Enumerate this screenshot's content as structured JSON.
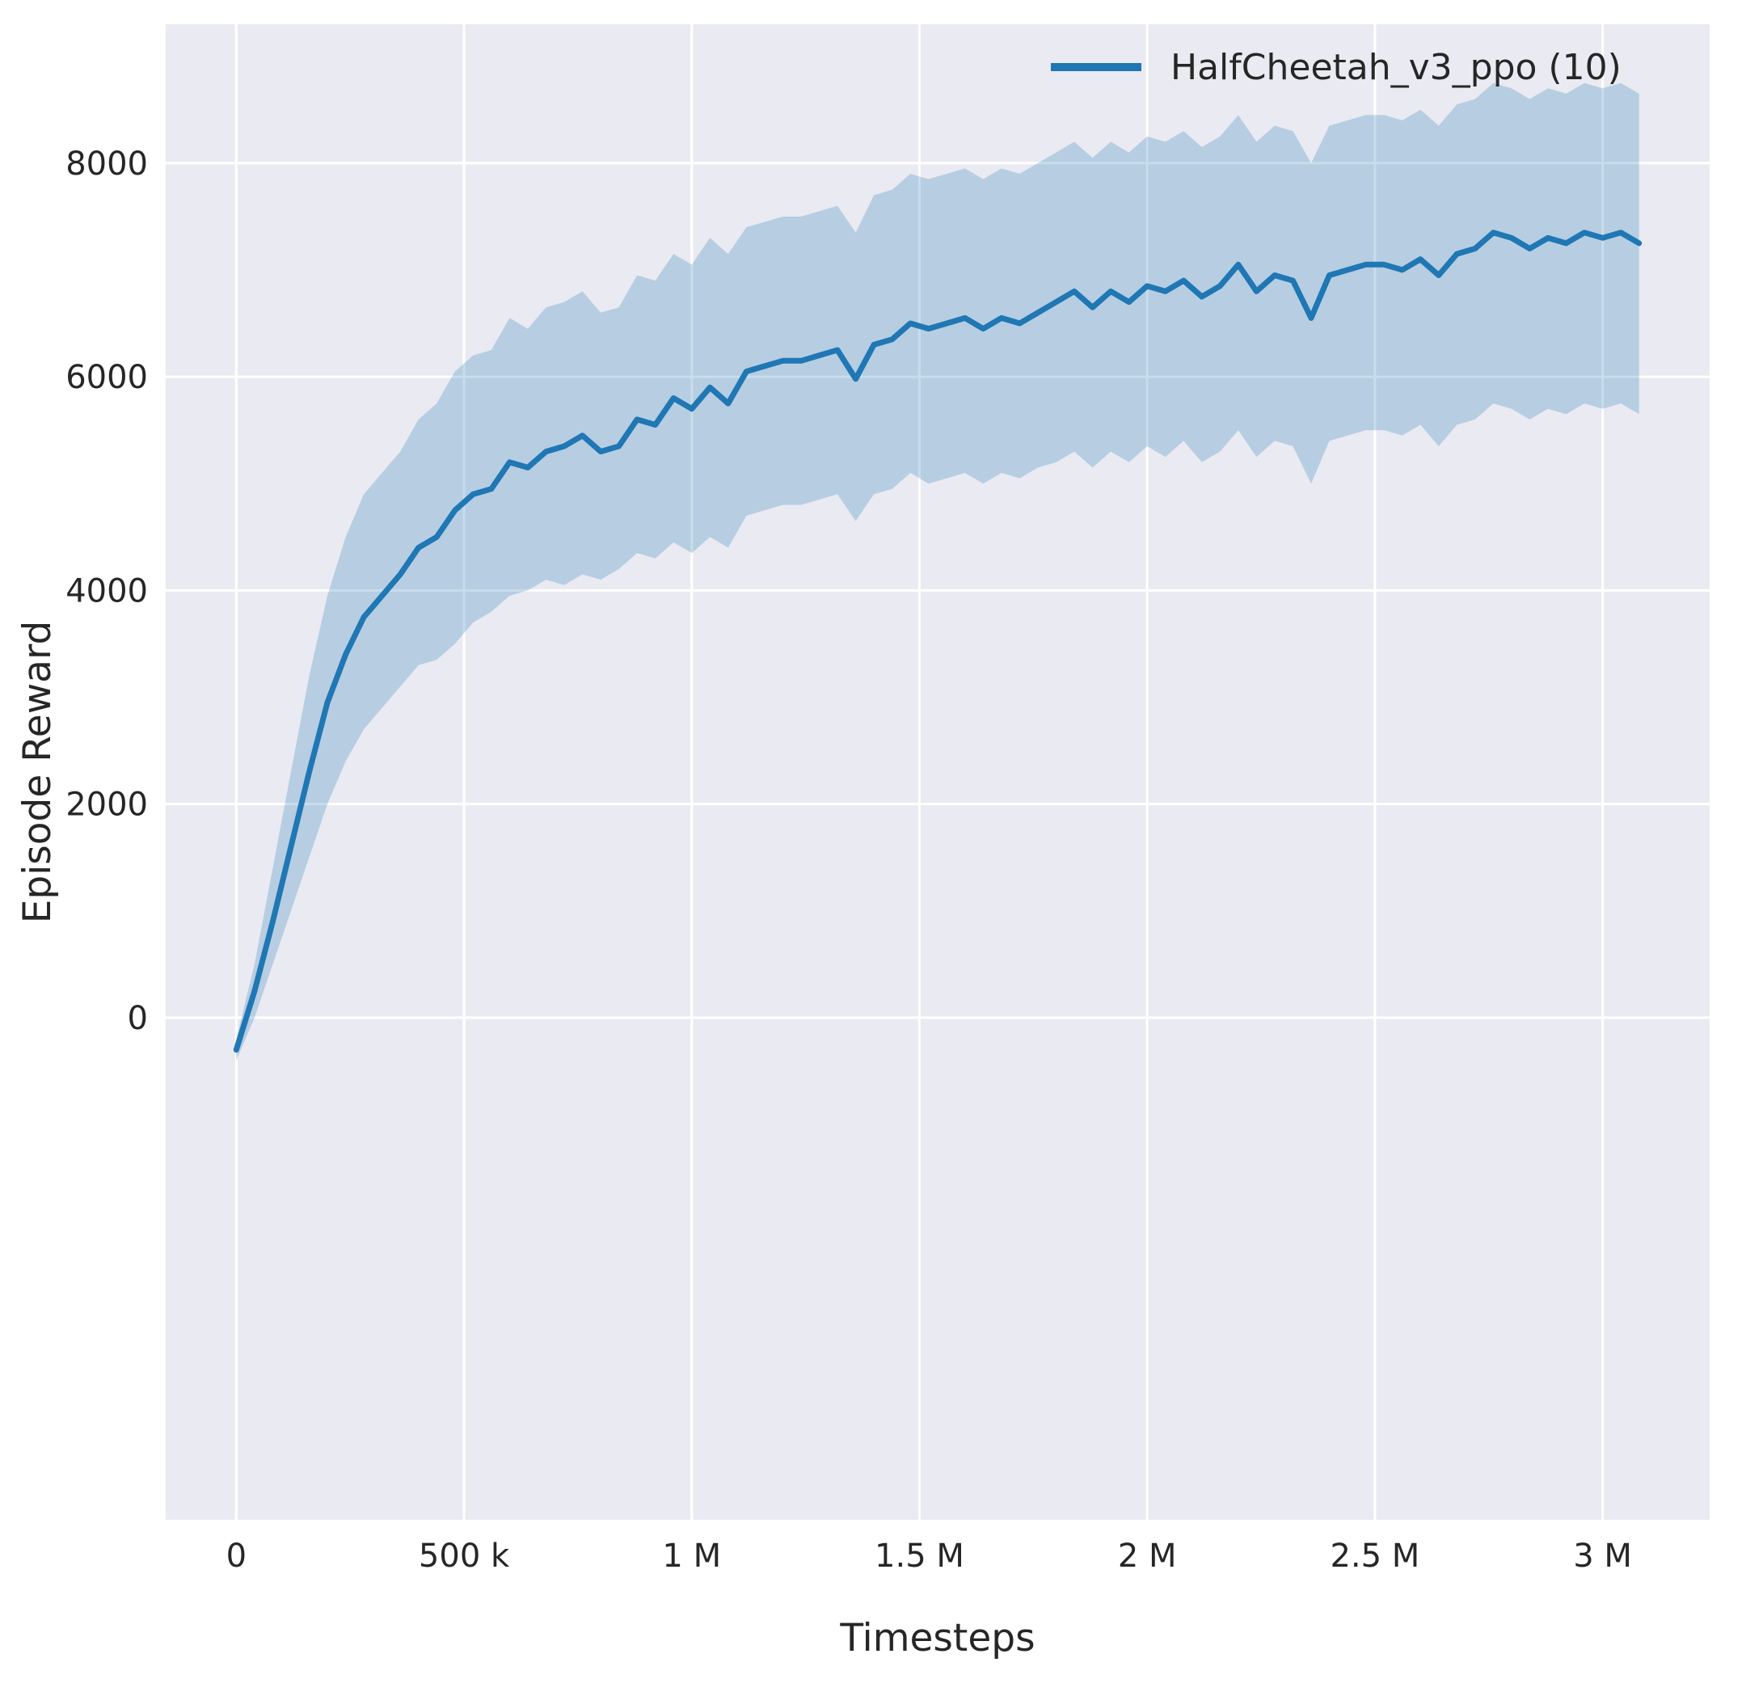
{
  "styles": {
    "figure_bg": "#ffffff",
    "panel_bg": "#eaeaf2",
    "grid_color": "#ffffff",
    "text_color": "#262626",
    "line_color": "#1f77b4",
    "band_color": "#1f77b4",
    "band_opacity": 0.25
  },
  "chart_data": {
    "type": "line",
    "title": "",
    "xlabel": "Timesteps",
    "ylabel": "Episode Reward",
    "grid": true,
    "legend_position": "upper right",
    "xlim": [
      -155000,
      3235000
    ],
    "ylim": [
      -4700,
      9300
    ],
    "x_ticks": {
      "values": [
        0,
        500000,
        1000000,
        1500000,
        2000000,
        2500000,
        3000000
      ],
      "labels": [
        "0",
        "500 k",
        "1 M",
        "1.5 M",
        "2 M",
        "2.5 M",
        "3 M"
      ]
    },
    "y_ticks": {
      "values": [
        0,
        2000,
        4000,
        6000,
        8000
      ],
      "labels": [
        "0",
        "2000",
        "4000",
        "6000",
        "8000"
      ]
    },
    "series": [
      {
        "name": "HalfCheetah_v3_ppo (10)",
        "color": "#1f77b4",
        "x": [
          0,
          40000,
          80000,
          120000,
          160000,
          200000,
          240000,
          280000,
          320000,
          360000,
          400000,
          440000,
          480000,
          520000,
          560000,
          600000,
          640000,
          680000,
          720000,
          760000,
          800000,
          840000,
          880000,
          920000,
          960000,
          1000000,
          1040000,
          1080000,
          1120000,
          1160000,
          1200000,
          1240000,
          1280000,
          1320000,
          1360000,
          1400000,
          1440000,
          1480000,
          1520000,
          1560000,
          1600000,
          1640000,
          1680000,
          1720000,
          1760000,
          1800000,
          1840000,
          1880000,
          1920000,
          1960000,
          2000000,
          2040000,
          2080000,
          2120000,
          2160000,
          2200000,
          2240000,
          2280000,
          2320000,
          2360000,
          2400000,
          2440000,
          2480000,
          2520000,
          2560000,
          2600000,
          2640000,
          2680000,
          2720000,
          2760000,
          2800000,
          2840000,
          2880000,
          2920000,
          2960000,
          3000000,
          3040000,
          3080000
        ],
        "mean": [
          -300,
          250,
          900,
          1600,
          2300,
          2950,
          3400,
          3750,
          3950,
          4150,
          4400,
          4500,
          4750,
          4900,
          4950,
          5200,
          5150,
          5300,
          5350,
          5450,
          5300,
          5350,
          5600,
          5550,
          5800,
          5700,
          5900,
          5750,
          6050,
          6100,
          6150,
          6150,
          6200,
          6250,
          5980,
          6300,
          6350,
          6500,
          6450,
          6500,
          6550,
          6450,
          6550,
          6500,
          6600,
          6700,
          6800,
          6650,
          6800,
          6700,
          6850,
          6800,
          6900,
          6750,
          6850,
          7050,
          6800,
          6950,
          6900,
          6550,
          6950,
          7000,
          7050,
          7050,
          7000,
          7100,
          6950,
          7150,
          7200,
          7350,
          7300,
          7200,
          7300,
          7250,
          7350,
          7300,
          7350,
          7250
        ],
        "band_lower": [
          -400,
          0,
          500,
          1000,
          1500,
          2000,
          2400,
          2700,
          2900,
          3100,
          3300,
          3350,
          3500,
          3700,
          3800,
          3950,
          4000,
          4100,
          4050,
          4150,
          4100,
          4200,
          4350,
          4300,
          4450,
          4350,
          4500,
          4400,
          4700,
          4750,
          4800,
          4800,
          4850,
          4900,
          4650,
          4900,
          4950,
          5100,
          5000,
          5050,
          5100,
          5000,
          5100,
          5050,
          5150,
          5200,
          5300,
          5150,
          5300,
          5200,
          5350,
          5250,
          5400,
          5200,
          5300,
          5500,
          5250,
          5400,
          5350,
          5000,
          5400,
          5450,
          5500,
          5500,
          5450,
          5550,
          5350,
          5550,
          5600,
          5750,
          5700,
          5600,
          5700,
          5650,
          5750,
          5700,
          5750,
          5650
        ],
        "band_upper": [
          -200,
          500,
          1400,
          2300,
          3200,
          3950,
          4500,
          4900,
          5100,
          5300,
          5600,
          5750,
          6050,
          6200,
          6250,
          6550,
          6450,
          6650,
          6700,
          6800,
          6600,
          6650,
          6950,
          6900,
          7150,
          7050,
          7300,
          7150,
          7400,
          7450,
          7500,
          7500,
          7550,
          7600,
          7350,
          7700,
          7750,
          7900,
          7850,
          7900,
          7950,
          7850,
          7950,
          7900,
          8000,
          8100,
          8200,
          8050,
          8200,
          8100,
          8250,
          8200,
          8300,
          8150,
          8250,
          8450,
          8200,
          8350,
          8300,
          8000,
          8350,
          8400,
          8450,
          8450,
          8400,
          8500,
          8350,
          8550,
          8600,
          8750,
          8700,
          8600,
          8700,
          8650,
          8750,
          8700,
          8750,
          8650
        ]
      }
    ]
  }
}
